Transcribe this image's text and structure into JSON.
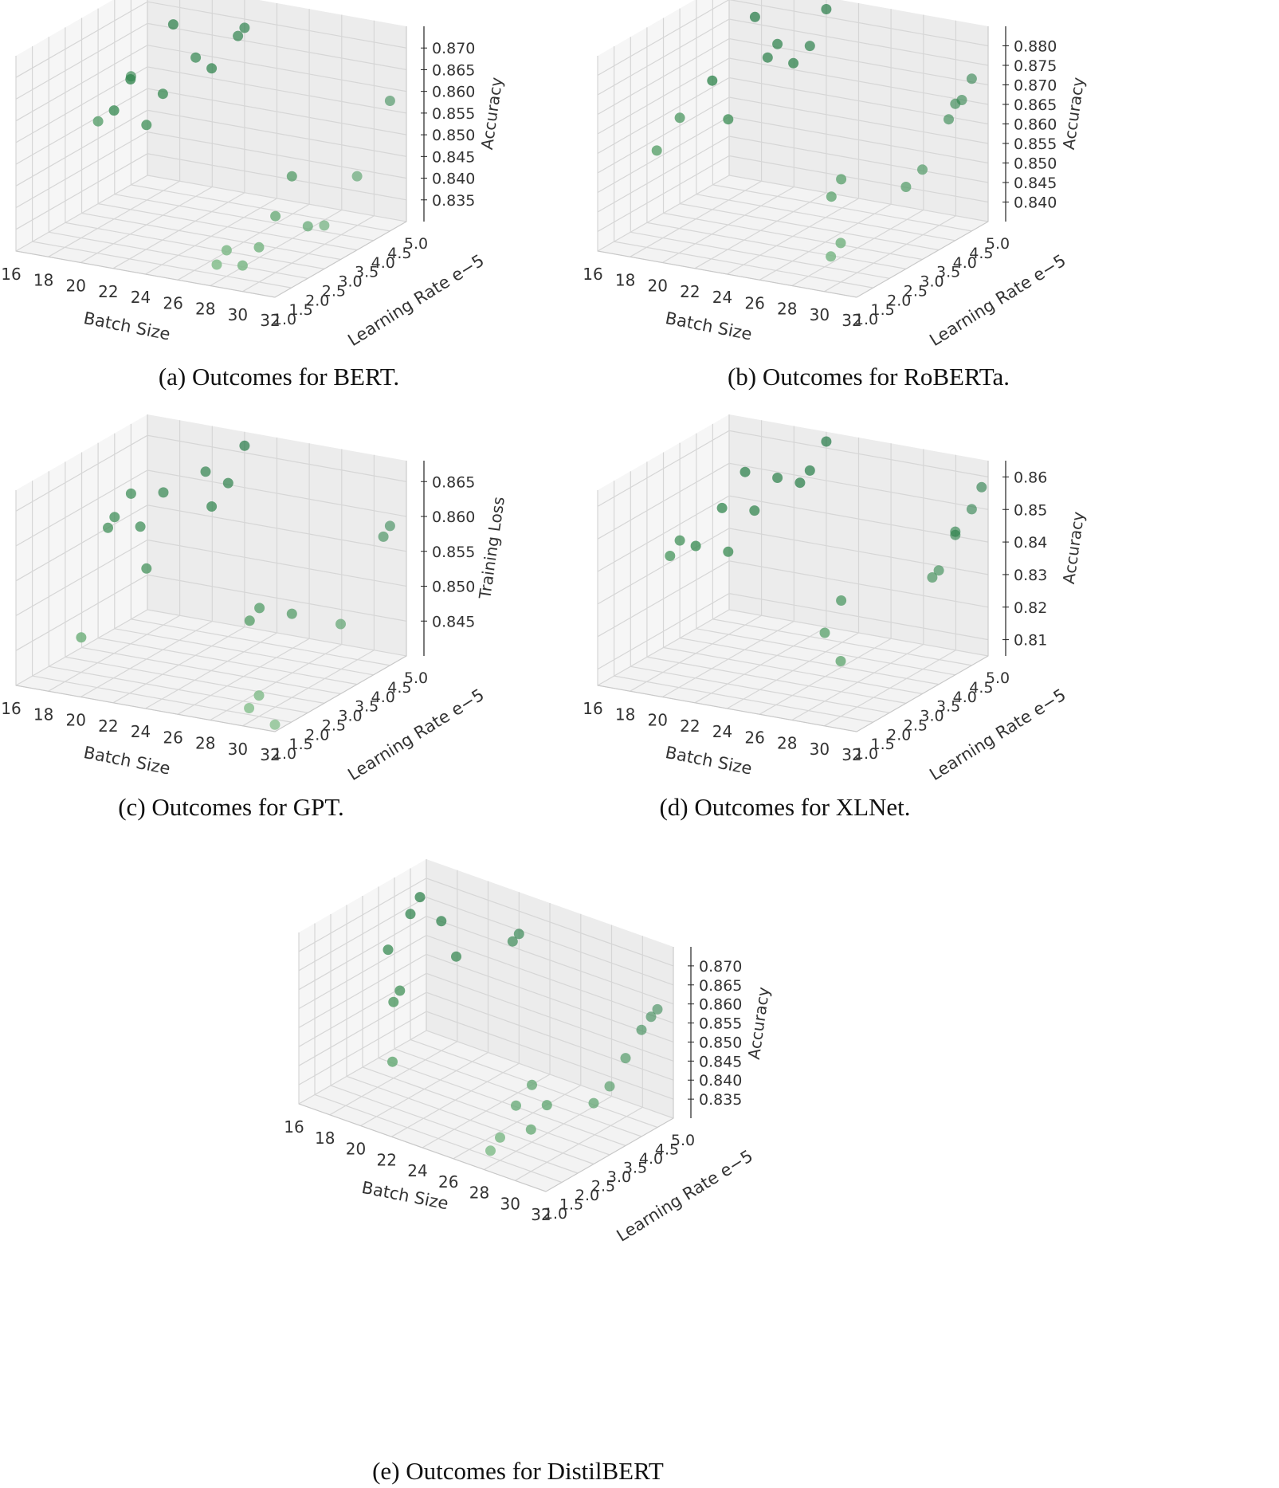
{
  "chart_data": [
    {
      "type": "scatter",
      "subplot": "a",
      "caption": "(a) Outcomes for BERT.",
      "xlabel": "Batch Size",
      "ylabel": "Learning Rate",
      "ylabel_suffix": "e−5",
      "zlabel": "Accuracy",
      "x_ticks": [
        "16",
        "18",
        "20",
        "22",
        "24",
        "26",
        "28",
        "30",
        "32"
      ],
      "y_ticks": [
        "1.0",
        "1.5",
        "2.0",
        "2.5",
        "3.0",
        "3.5",
        "4.0",
        "4.5",
        "5.0"
      ],
      "z_ticks": [
        "0.835",
        "0.840",
        "0.845",
        "0.850",
        "0.855",
        "0.860",
        "0.865",
        "0.870"
      ],
      "xlim": [
        16,
        32
      ],
      "ylim": [
        1.0,
        5.0
      ],
      "zlim": [
        0.83,
        0.875
      ],
      "grid": true,
      "colormap": "Greens",
      "points": [
        {
          "x": 16,
          "y": 4.5,
          "z": 0.855
        },
        {
          "x": 16,
          "y": 3.5,
          "z": 0.849
        },
        {
          "x": 18,
          "y": 4.8,
          "z": 0.867
        },
        {
          "x": 18,
          "y": 3.5,
          "z": 0.86
        },
        {
          "x": 18,
          "y": 3.0,
          "z": 0.855
        },
        {
          "x": 20,
          "y": 4.5,
          "z": 0.862
        },
        {
          "x": 20,
          "y": 3.5,
          "z": 0.858
        },
        {
          "x": 20,
          "y": 3.0,
          "z": 0.853
        },
        {
          "x": 22,
          "y": 5.0,
          "z": 0.868
        },
        {
          "x": 22,
          "y": 4.8,
          "z": 0.867
        },
        {
          "x": 22,
          "y": 4.0,
          "z": 0.863
        },
        {
          "x": 30,
          "y": 2.0,
          "z": 0.843
        },
        {
          "x": 30,
          "y": 2.5,
          "z": 0.85
        },
        {
          "x": 30,
          "y": 1.5,
          "z": 0.838
        },
        {
          "x": 30,
          "y": 1.0,
          "z": 0.836
        },
        {
          "x": 32,
          "y": 2.0,
          "z": 0.842
        },
        {
          "x": 32,
          "y": 2.5,
          "z": 0.84
        },
        {
          "x": 32,
          "y": 4.5,
          "z": 0.86
        },
        {
          "x": 32,
          "y": 3.5,
          "z": 0.847
        },
        {
          "x": 28,
          "y": 1.5,
          "z": 0.836
        },
        {
          "x": 28,
          "y": 1.2,
          "z": 0.834
        }
      ]
    },
    {
      "type": "scatter",
      "subplot": "b",
      "caption": "(b) Outcomes for RoBERTa.",
      "xlabel": "Batch Size",
      "ylabel": "Learning Rate",
      "ylabel_suffix": "e−5",
      "zlabel": "Accuracy",
      "x_ticks": [
        "16",
        "18",
        "20",
        "22",
        "24",
        "26",
        "28",
        "30",
        "32"
      ],
      "y_ticks": [
        "1.0",
        "1.5",
        "2.0",
        "2.5",
        "3.0",
        "3.5",
        "4.0",
        "4.5",
        "5.0"
      ],
      "z_ticks": [
        "0.840",
        "0.845",
        "0.850",
        "0.855",
        "0.860",
        "0.865",
        "0.870",
        "0.875",
        "0.880"
      ],
      "xlim": [
        16,
        32
      ],
      "ylim": [
        1.0,
        5.0
      ],
      "zlim": [
        0.835,
        0.885
      ],
      "grid": true,
      "colormap": "Greens",
      "points": [
        {
          "x": 16,
          "y": 3.5,
          "z": 0.857
        },
        {
          "x": 16,
          "y": 2.8,
          "z": 0.852
        },
        {
          "x": 18,
          "y": 4.8,
          "z": 0.878
        },
        {
          "x": 18,
          "y": 3.5,
          "z": 0.868
        },
        {
          "x": 20,
          "y": 4.5,
          "z": 0.874
        },
        {
          "x": 20,
          "y": 4.2,
          "z": 0.872
        },
        {
          "x": 20,
          "y": 3.0,
          "z": 0.862
        },
        {
          "x": 22,
          "y": 5.0,
          "z": 0.882
        },
        {
          "x": 22,
          "y": 4.5,
          "z": 0.875
        },
        {
          "x": 22,
          "y": 4.0,
          "z": 0.873
        },
        {
          "x": 28,
          "y": 2.5,
          "z": 0.855
        },
        {
          "x": 28,
          "y": 2.2,
          "z": 0.852
        },
        {
          "x": 30,
          "y": 1.5,
          "z": 0.845
        },
        {
          "x": 30,
          "y": 1.2,
          "z": 0.843
        },
        {
          "x": 32,
          "y": 4.0,
          "z": 0.87
        },
        {
          "x": 32,
          "y": 3.8,
          "z": 0.867
        },
        {
          "x": 32,
          "y": 2.5,
          "z": 0.856
        },
        {
          "x": 32,
          "y": 4.5,
          "z": 0.874
        },
        {
          "x": 32,
          "y": 4.2,
          "z": 0.87
        },
        {
          "x": 32,
          "y": 3.0,
          "z": 0.858
        }
      ]
    },
    {
      "type": "scatter",
      "subplot": "c",
      "caption": "(c) Outcomes for GPT.",
      "xlabel": "Batch Size",
      "ylabel": "Learning Rate",
      "ylabel_suffix": "e−5",
      "zlabel": "Training Loss",
      "x_ticks": [
        "16",
        "18",
        "20",
        "22",
        "24",
        "26",
        "28",
        "30",
        "32"
      ],
      "y_ticks": [
        "1.0",
        "1.5",
        "2.0",
        "2.5",
        "3.0",
        "3.5",
        "4.0",
        "4.5",
        "5.0"
      ],
      "z_ticks": [
        "0.845",
        "0.850",
        "0.855",
        "0.860",
        "0.865"
      ],
      "xlim": [
        16,
        32
      ],
      "ylim": [
        1.0,
        5.0
      ],
      "zlim": [
        0.84,
        0.868
      ],
      "grid": true,
      "colormap": "Greens",
      "points": [
        {
          "x": 16,
          "y": 4.5,
          "z": 0.858
        },
        {
          "x": 16,
          "y": 4.0,
          "z": 0.856
        },
        {
          "x": 16,
          "y": 3.8,
          "z": 0.855
        },
        {
          "x": 18,
          "y": 4.5,
          "z": 0.859
        },
        {
          "x": 18,
          "y": 3.8,
          "z": 0.856
        },
        {
          "x": 18,
          "y": 2.0,
          "z": 0.845
        },
        {
          "x": 20,
          "y": 4.8,
          "z": 0.862
        },
        {
          "x": 20,
          "y": 3.0,
          "z": 0.853
        },
        {
          "x": 22,
          "y": 5.0,
          "z": 0.866
        },
        {
          "x": 22,
          "y": 4.5,
          "z": 0.862
        },
        {
          "x": 22,
          "y": 4.0,
          "z": 0.86
        },
        {
          "x": 28,
          "y": 2.5,
          "z": 0.852
        },
        {
          "x": 28,
          "y": 2.2,
          "z": 0.851
        },
        {
          "x": 30,
          "y": 2.5,
          "z": 0.852
        },
        {
          "x": 30,
          "y": 1.5,
          "z": 0.843
        },
        {
          "x": 30,
          "y": 1.2,
          "z": 0.842
        },
        {
          "x": 32,
          "y": 4.5,
          "z": 0.86
        },
        {
          "x": 32,
          "y": 4.3,
          "z": 0.859
        },
        {
          "x": 32,
          "y": 3.0,
          "z": 0.85
        },
        {
          "x": 32,
          "y": 1.0,
          "z": 0.841
        }
      ]
    },
    {
      "type": "scatter",
      "subplot": "d",
      "caption": "(d) Outcomes for XLNet.",
      "xlabel": "Batch Size",
      "ylabel": "Learning Rate",
      "ylabel_suffix": "e−5",
      "zlabel": "Accuracy",
      "x_ticks": [
        "16",
        "18",
        "20",
        "22",
        "24",
        "26",
        "28",
        "30",
        "32"
      ],
      "y_ticks": [
        "1.0",
        "1.5",
        "2.0",
        "2.5",
        "3.0",
        "3.5",
        "4.0",
        "4.5",
        "5.0"
      ],
      "z_ticks": [
        "0.81",
        "0.82",
        "0.83",
        "0.84",
        "0.85",
        "0.86"
      ],
      "xlim": [
        16,
        32
      ],
      "ylim": [
        1.0,
        5.0
      ],
      "zlim": [
        0.805,
        0.865
      ],
      "grid": true,
      "colormap": "Greens",
      "points": [
        {
          "x": 16,
          "y": 3.5,
          "z": 0.835
        },
        {
          "x": 16,
          "y": 3.2,
          "z": 0.832
        },
        {
          "x": 18,
          "y": 4.5,
          "z": 0.852
        },
        {
          "x": 18,
          "y": 3.8,
          "z": 0.845
        },
        {
          "x": 18,
          "y": 3.0,
          "z": 0.838
        },
        {
          "x": 20,
          "y": 4.5,
          "z": 0.852
        },
        {
          "x": 20,
          "y": 3.8,
          "z": 0.846
        },
        {
          "x": 20,
          "y": 3.0,
          "z": 0.838
        },
        {
          "x": 22,
          "y": 5.0,
          "z": 0.862
        },
        {
          "x": 22,
          "y": 4.5,
          "z": 0.856
        },
        {
          "x": 22,
          "y": 4.2,
          "z": 0.854
        },
        {
          "x": 28,
          "y": 2.5,
          "z": 0.833
        },
        {
          "x": 28,
          "y": 2.0,
          "z": 0.826
        },
        {
          "x": 30,
          "y": 1.5,
          "z": 0.822
        },
        {
          "x": 32,
          "y": 4.0,
          "z": 0.848
        },
        {
          "x": 32,
          "y": 3.5,
          "z": 0.84
        },
        {
          "x": 32,
          "y": 3.3,
          "z": 0.839
        },
        {
          "x": 32,
          "y": 4.8,
          "z": 0.858
        },
        {
          "x": 32,
          "y": 4.5,
          "z": 0.853
        },
        {
          "x": 32,
          "y": 4.0,
          "z": 0.849
        }
      ]
    },
    {
      "type": "scatter",
      "subplot": "e",
      "caption": "(e) Outcomes for DistilBERT",
      "xlabel": "Batch Size",
      "ylabel": "Learning Rate",
      "ylabel_suffix": "e−5",
      "zlabel": "Accuracy",
      "x_ticks": [
        "16",
        "18",
        "20",
        "22",
        "24",
        "26",
        "28",
        "30",
        "32"
      ],
      "y_ticks": [
        "1.0",
        "1.5",
        "2.0",
        "2.5",
        "3.0",
        "3.5",
        "4.0",
        "4.5",
        "5.0"
      ],
      "z_ticks": [
        "0.835",
        "0.840",
        "0.845",
        "0.850",
        "0.855",
        "0.860",
        "0.865",
        "0.870"
      ],
      "xlim": [
        16,
        32
      ],
      "ylim": [
        1.0,
        5.0
      ],
      "zlim": [
        0.83,
        0.875
      ],
      "grid": true,
      "colormap": "Greens",
      "points": [
        {
          "x": 16,
          "y": 4.8,
          "z": 0.866
        },
        {
          "x": 16,
          "y": 4.5,
          "z": 0.863
        },
        {
          "x": 16,
          "y": 3.8,
          "z": 0.857
        },
        {
          "x": 18,
          "y": 4.5,
          "z": 0.864
        },
        {
          "x": 18,
          "y": 3.2,
          "z": 0.852
        },
        {
          "x": 18,
          "y": 3.0,
          "z": 0.85
        },
        {
          "x": 20,
          "y": 4.0,
          "z": 0.86
        },
        {
          "x": 20,
          "y": 2.0,
          "z": 0.842
        },
        {
          "x": 22,
          "y": 5.0,
          "z": 0.864
        },
        {
          "x": 22,
          "y": 4.8,
          "z": 0.863
        },
        {
          "x": 28,
          "y": 2.5,
          "z": 0.845
        },
        {
          "x": 28,
          "y": 2.0,
          "z": 0.842
        },
        {
          "x": 28,
          "y": 1.5,
          "z": 0.836
        },
        {
          "x": 28,
          "y": 1.2,
          "z": 0.834
        },
        {
          "x": 30,
          "y": 2.0,
          "z": 0.845
        },
        {
          "x": 30,
          "y": 1.5,
          "z": 0.841
        },
        {
          "x": 32,
          "y": 4.0,
          "z": 0.858
        },
        {
          "x": 32,
          "y": 3.5,
          "z": 0.853
        },
        {
          "x": 32,
          "y": 2.5,
          "z": 0.846
        },
        {
          "x": 32,
          "y": 4.5,
          "z": 0.861
        },
        {
          "x": 32,
          "y": 4.3,
          "z": 0.86
        },
        {
          "x": 32,
          "y": 3.0,
          "z": 0.848
        }
      ]
    }
  ]
}
